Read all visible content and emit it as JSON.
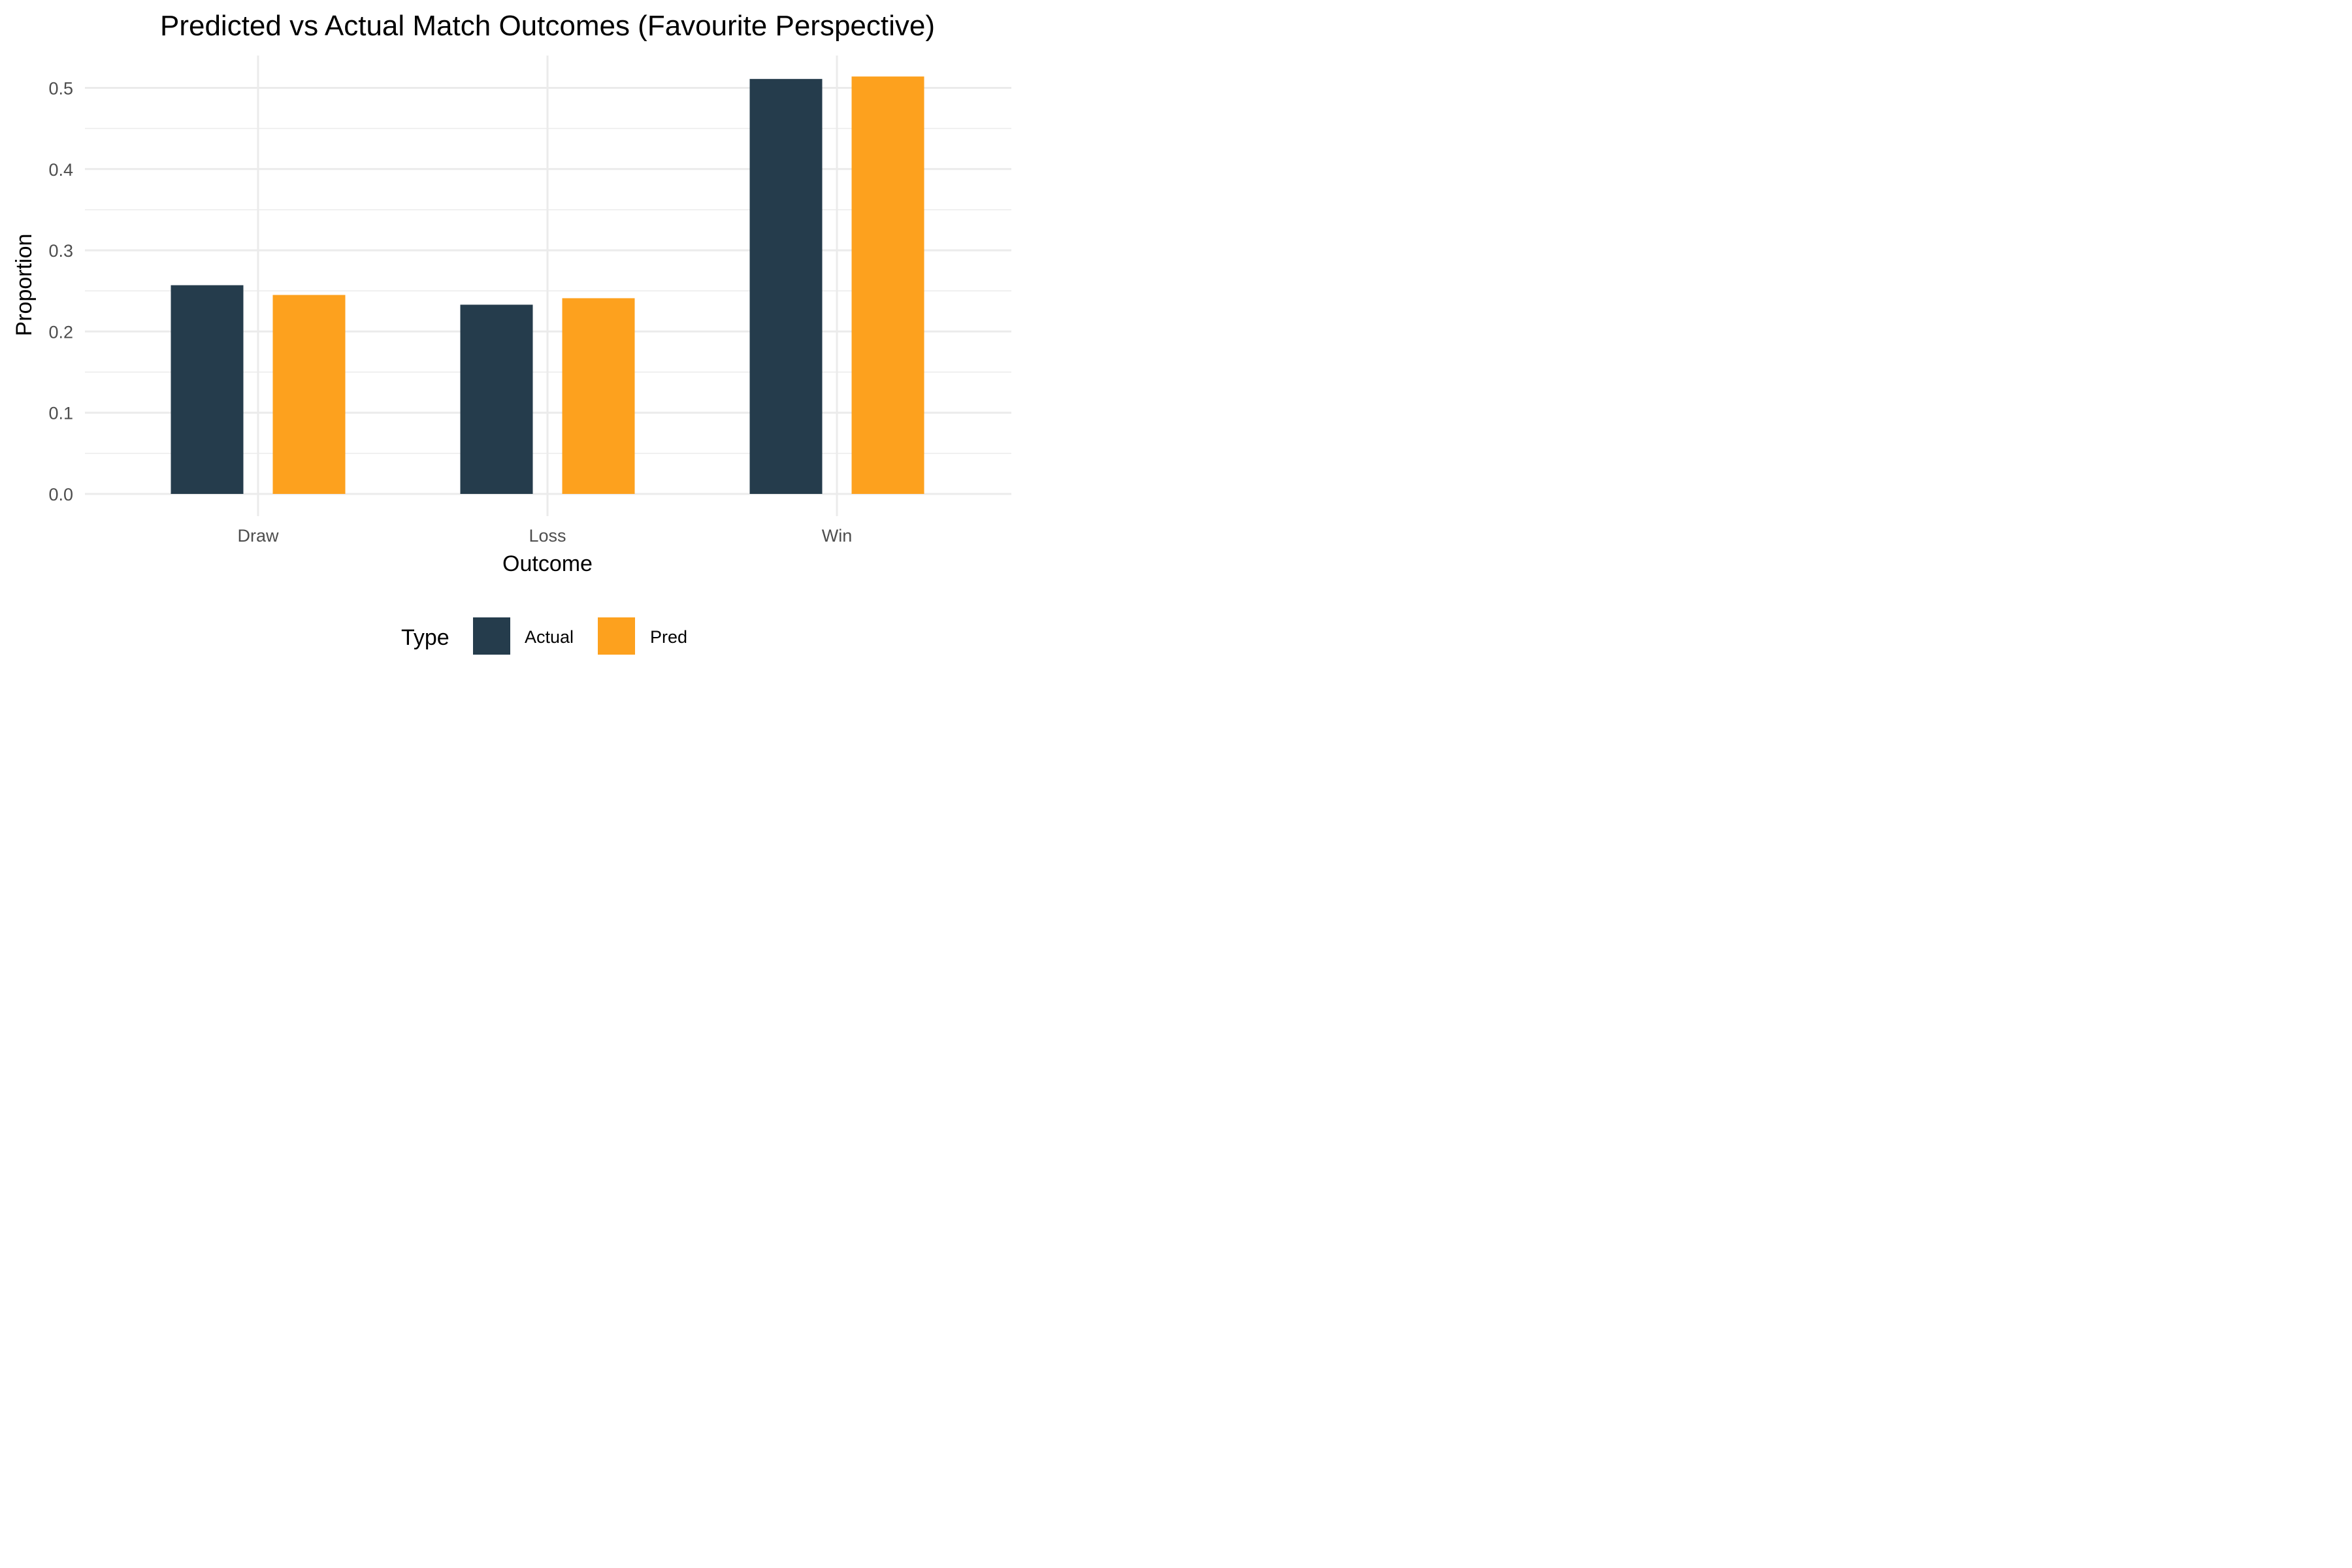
{
  "chart_data": {
    "type": "bar",
    "title": "Predicted vs Actual Match Outcomes (Favourite Perspective)",
    "xlabel": "Outcome",
    "ylabel": "Proportion",
    "categories": [
      "Draw",
      "Loss",
      "Win"
    ],
    "series": [
      {
        "name": "Actual",
        "color": "#253C4C",
        "values": [
          0.257,
          0.233,
          0.511
        ]
      },
      {
        "name": "Pred",
        "color": "#FDA11E",
        "values": [
          0.245,
          0.241,
          0.514
        ]
      }
    ],
    "ylim": [
      0,
      0.54
    ],
    "yticks": [
      "0.0",
      "0.1",
      "0.2",
      "0.3",
      "0.4",
      "0.5"
    ],
    "grid": true,
    "legend": {
      "title": "Type",
      "position": "bottom"
    }
  }
}
